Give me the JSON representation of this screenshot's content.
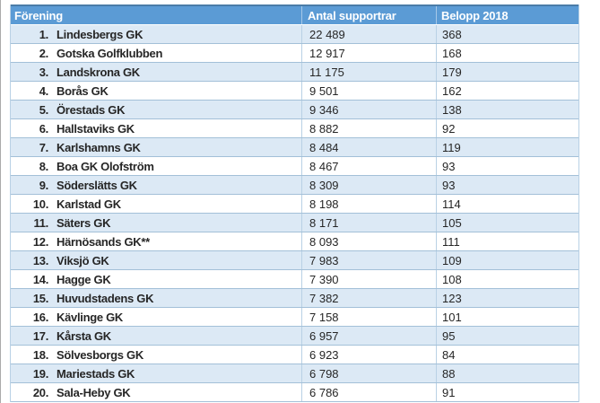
{
  "colors": {
    "header_bg": "#5B9BD5",
    "header_text": "#FFFFFF",
    "header_top_border": "#4A7CA8",
    "stripe_row": "#DCE9F5",
    "white_row": "#FFFFFF",
    "row_border": "#A3C0D8",
    "column_border": "#B9D1E5",
    "body_text": "#262626"
  },
  "table": {
    "columns": [
      {
        "label": "Förening"
      },
      {
        "label": "Antal supportrar"
      },
      {
        "label": "Belopp 2018"
      }
    ],
    "rows": [
      {
        "rank": "1.",
        "name": "Lindesbergs GK",
        "supporters": "22 489",
        "amount": "368"
      },
      {
        "rank": "2.",
        "name": "Gotska Golfklubben",
        "supporters": "12 917",
        "amount": "168"
      },
      {
        "rank": "3.",
        "name": "Landskrona GK",
        "supporters": "11 175",
        "amount": "179"
      },
      {
        "rank": "4.",
        "name": "Borås GK",
        "supporters": "9 501",
        "amount": "162"
      },
      {
        "rank": "5.",
        "name": "Örestads GK",
        "supporters": "9 346",
        "amount": "138"
      },
      {
        "rank": "6.",
        "name": "Hallstaviks GK",
        "supporters": "8 882",
        "amount": "92"
      },
      {
        "rank": "7.",
        "name": "Karlshamns GK",
        "supporters": "8 484",
        "amount": "119"
      },
      {
        "rank": "8.",
        "name": "Boa GK Olofström",
        "supporters": "8 467",
        "amount": "93"
      },
      {
        "rank": "9.",
        "name": "Söderslätts GK",
        "supporters": "8 309",
        "amount": "93"
      },
      {
        "rank": "10.",
        "name": "Karlstad GK",
        "supporters": "8 198",
        "amount": "114"
      },
      {
        "rank": "11.",
        "name": "Säters GK",
        "supporters": "8 171",
        "amount": "105"
      },
      {
        "rank": "12.",
        "name": "Härnösands GK**",
        "supporters": "8 093",
        "amount": "111"
      },
      {
        "rank": "13.",
        "name": "Viksjö GK",
        "supporters": "7 983",
        "amount": "109"
      },
      {
        "rank": "14.",
        "name": "Hagge GK",
        "supporters": "7 390",
        "amount": "108"
      },
      {
        "rank": "15.",
        "name": "Huvudstadens GK",
        "supporters": "7 382",
        "amount": "123"
      },
      {
        "rank": "16.",
        "name": "Kävlinge GK",
        "supporters": "7 158",
        "amount": "101"
      },
      {
        "rank": "17.",
        "name": "Kårsta GK",
        "supporters": "6 957",
        "amount": "95"
      },
      {
        "rank": "18.",
        "name": "Sölvesborgs GK",
        "supporters": "6 923",
        "amount": "84"
      },
      {
        "rank": "19.",
        "name": "Mariestads GK",
        "supporters": "6 798",
        "amount": "88"
      },
      {
        "rank": "20.",
        "name": "Sala-Heby GK",
        "supporters": "6 786",
        "amount": "91"
      }
    ]
  }
}
